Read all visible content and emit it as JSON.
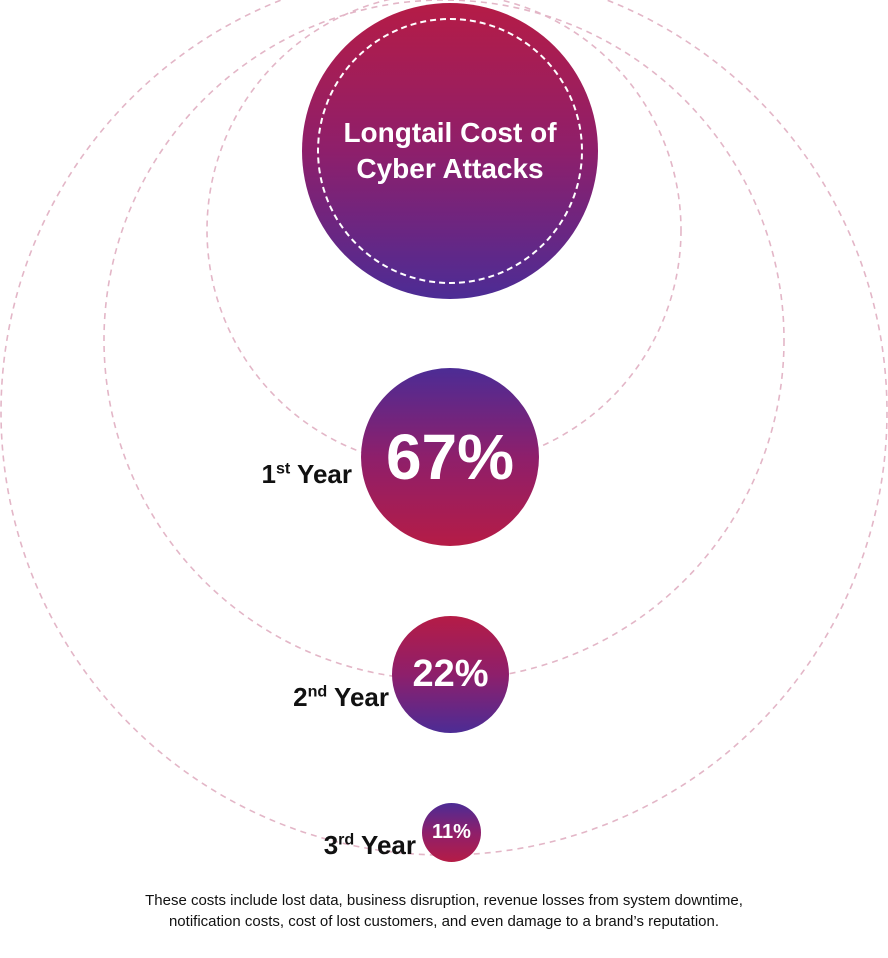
{
  "title": "Longtail Cost of Cyber Attacks",
  "stages": [
    {
      "value": "67%",
      "ordinal": "1",
      "suffix": "st",
      "label": "Year"
    },
    {
      "value": "22%",
      "ordinal": "2",
      "suffix": "nd",
      "label": "Year"
    },
    {
      "value": "11%",
      "ordinal": "3",
      "suffix": "rd",
      "label": "Year"
    }
  ],
  "footnote": {
    "line1": "These costs include lost data, business disruption, revenue losses from system downtime,",
    "line2": "notification costs, cost of lost customers, and even damage to a brand’s reputation."
  },
  "colors": {
    "crimson": "#b51c46",
    "magenta": "#8e1f6b",
    "indigo": "#4c2c95",
    "dashed_ring": "#e3b6c7",
    "text_dark": "#111111"
  }
}
